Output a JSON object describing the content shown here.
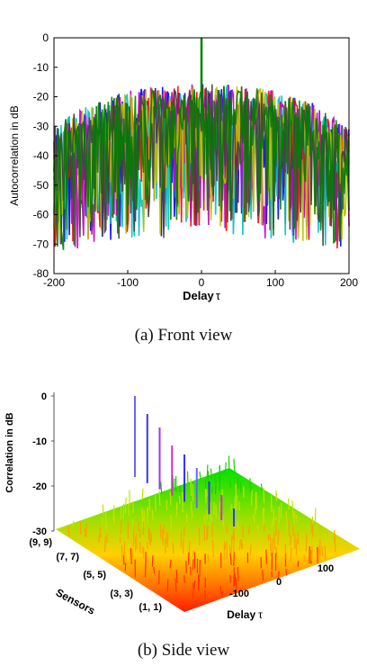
{
  "chart_data": [
    {
      "type": "line",
      "panel_caption": "(a) Front view",
      "xlabel": "Delay",
      "xlabel_symbol": "τ",
      "ylabel": "Autocorrelation in dB",
      "xlim": [
        -200,
        200
      ],
      "ylim": [
        -80,
        0
      ],
      "xticks": [
        "-200",
        "-100",
        "0",
        "100",
        "200"
      ],
      "yticks": [
        "0",
        "-10",
        "-20",
        "-30",
        "-40",
        "-50",
        "-60",
        "-70",
        "-80"
      ],
      "grid": false,
      "legend": "none",
      "description_series": [
        {
          "color": "#0000ff",
          "peak_at_zero": 0
        },
        {
          "color": "#ff0000"
        },
        {
          "color": "#00bfbf"
        },
        {
          "color": "#bf00bf"
        },
        {
          "color": "#bfbf00"
        },
        {
          "color": "#404040"
        },
        {
          "color": "#008000"
        }
      ],
      "envelope": {
        "x": [
          -200,
          -150,
          -100,
          -50,
          -10,
          10,
          50,
          100,
          150,
          200
        ],
        "upper": [
          -30,
          -22,
          -18,
          -16,
          -15,
          -15,
          -16,
          -18,
          -22,
          -30
        ],
        "lower": [
          -75,
          -70,
          -68,
          -68,
          -65,
          -65,
          -68,
          -70,
          -70,
          -75
        ]
      },
      "peak": {
        "x": 0,
        "y": 0
      }
    },
    {
      "type": "surface",
      "panel_caption": "(b) Side view",
      "xlabel": "Delay",
      "xlabel_symbol": "τ",
      "ylabel": "Sensors",
      "zlabel": "Correlation in dB",
      "xticks": [
        "-100",
        "0",
        "100"
      ],
      "yticks": [
        "(1, 1)",
        "(3, 3)",
        "(5, 5)",
        "(7, 7)",
        "(9, 9)"
      ],
      "zticks": [
        "0",
        "-10",
        "-20",
        "-30"
      ],
      "zlim": [
        -30,
        0
      ],
      "colormap": [
        "#ff0000",
        "#ffff00",
        "#00ff00"
      ],
      "surface_level_db": -20,
      "peaks_db": [
        0,
        -3,
        -5,
        -8,
        -9,
        -11,
        -13,
        -15,
        -17
      ]
    }
  ]
}
